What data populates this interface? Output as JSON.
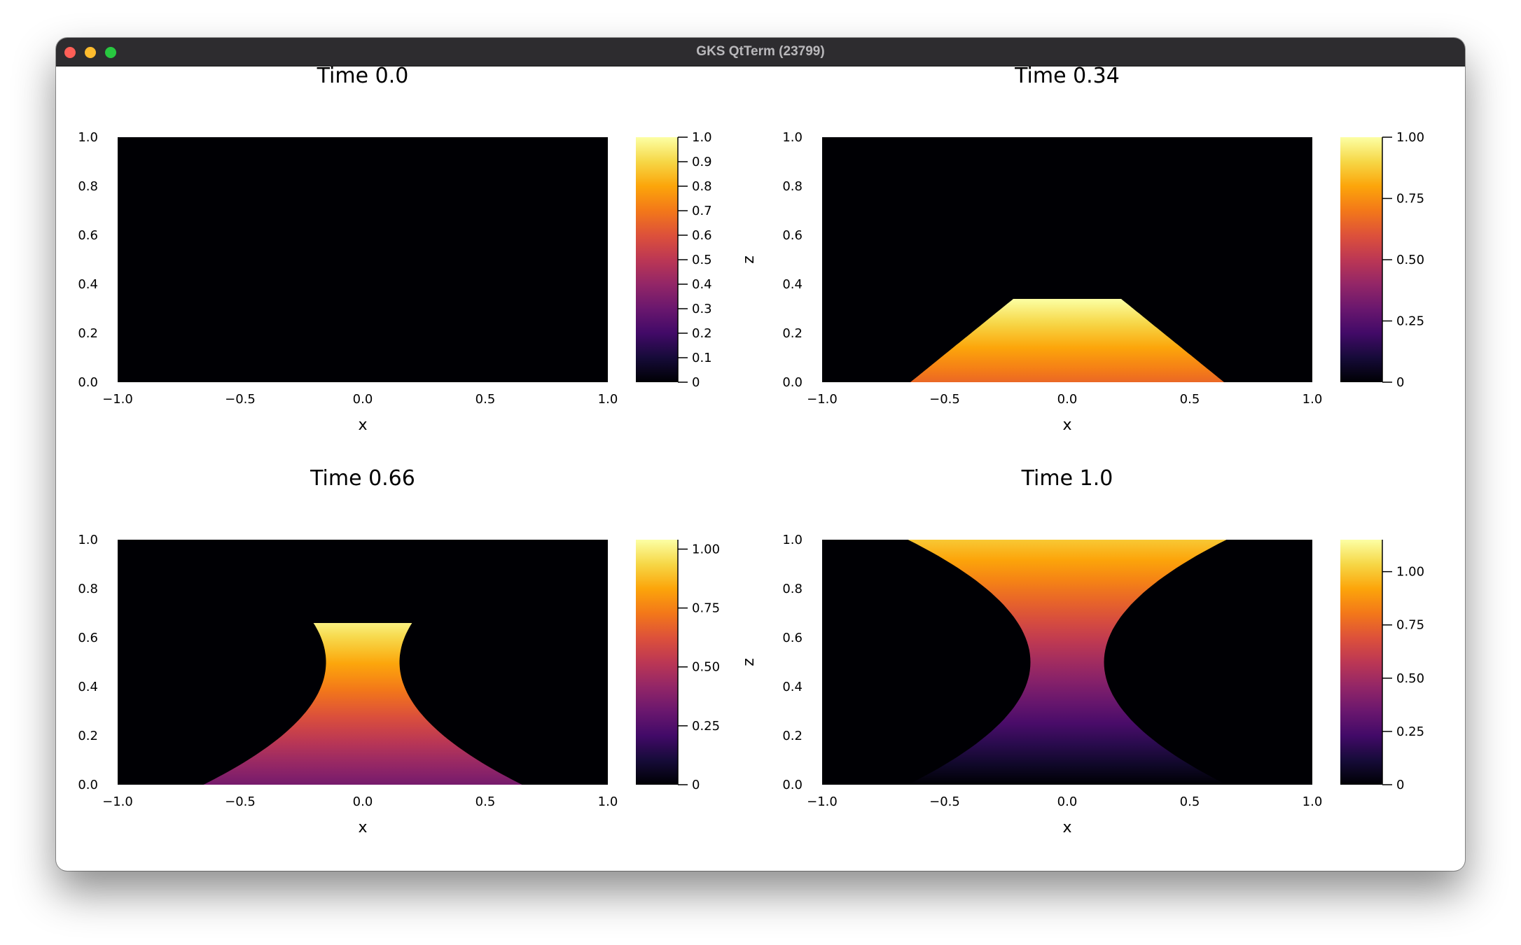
{
  "window": {
    "title": "GKS QtTerm (23799)",
    "traffic_lights": [
      "close",
      "minimize",
      "maximize"
    ],
    "colors": {
      "close": "#fe5f57",
      "minimize": "#febc2e",
      "maximize": "#28c840",
      "titlebar": "#2d2c2f"
    }
  },
  "chart_data": [
    {
      "type": "heatmap",
      "title": "Time 0.0",
      "xlabel": "x",
      "ylabel": "",
      "xlim": [
        -1.0,
        1.0
      ],
      "ylim": [
        0.0,
        1.0
      ],
      "xticks": [
        "−1.0",
        "−0.5",
        "0.0",
        "0.5",
        "1.0"
      ],
      "yticks": [
        "0.0",
        "0.2",
        "0.4",
        "0.6",
        "0.8",
        "1.0"
      ],
      "colormap": "inferno",
      "clim": [
        0,
        1.0
      ],
      "colorbar_ticks": [
        {
          "value": 0,
          "label": "0"
        },
        {
          "value": 0.1,
          "label": "0.1"
        },
        {
          "value": 0.2,
          "label": "0.2"
        },
        {
          "value": 0.3,
          "label": "0.3"
        },
        {
          "value": 0.4,
          "label": "0.4"
        },
        {
          "value": 0.5,
          "label": "0.5"
        },
        {
          "value": 0.6,
          "label": "0.6"
        },
        {
          "value": 0.7,
          "label": "0.7"
        },
        {
          "value": 0.8,
          "label": "0.8"
        },
        {
          "value": 0.9,
          "label": "0.9"
        },
        {
          "value": 1.0,
          "label": "1.0"
        }
      ],
      "field": {
        "t": 0.0,
        "shape": "empty"
      }
    },
    {
      "type": "heatmap",
      "title": "Time 0.34",
      "xlabel": "x",
      "ylabel": "z",
      "xlim": [
        -1.0,
        1.0
      ],
      "ylim": [
        0.0,
        1.0
      ],
      "xticks": [
        "−1.0",
        "−0.5",
        "0.0",
        "0.5",
        "1.0"
      ],
      "yticks": [
        "0.0",
        "0.2",
        "0.4",
        "0.6",
        "0.8",
        "1.0"
      ],
      "colormap": "inferno",
      "clim": [
        0,
        1.0
      ],
      "colorbar_ticks": [
        {
          "value": 0,
          "label": "0"
        },
        {
          "value": 0.25,
          "label": "0.25"
        },
        {
          "value": 0.5,
          "label": "0.50"
        },
        {
          "value": 0.75,
          "label": "0.75"
        },
        {
          "value": 1.0,
          "label": "1.00"
        }
      ],
      "field": {
        "t": 0.34,
        "shape": "trapezoid",
        "top_z": 0.34,
        "half_width_bottom": 0.64,
        "half_width_top": 0.22,
        "value_bottom": 0.66,
        "value_top": 1.0
      }
    },
    {
      "type": "heatmap",
      "title": "Time 0.66",
      "xlabel": "x",
      "ylabel": "",
      "xlim": [
        -1.0,
        1.0
      ],
      "ylim": [
        0.0,
        1.0
      ],
      "xticks": [
        "−1.0",
        "−0.5",
        "0.0",
        "0.5",
        "1.0"
      ],
      "yticks": [
        "0.0",
        "0.2",
        "0.4",
        "0.6",
        "0.8",
        "1.0"
      ],
      "colormap": "inferno",
      "clim": [
        0,
        1.04
      ],
      "colorbar_ticks": [
        {
          "value": 0,
          "label": "0"
        },
        {
          "value": 0.25,
          "label": "0.25"
        },
        {
          "value": 0.5,
          "label": "0.50"
        },
        {
          "value": 0.75,
          "label": "0.75"
        },
        {
          "value": 1.0,
          "label": "1.00"
        }
      ],
      "field": {
        "t": 0.66,
        "shape": "hourglass",
        "top_z": 0.66,
        "waist_z": 0.5,
        "half_width_bottom": 0.65,
        "half_width_waist": 0.15,
        "half_width_top": 0.21,
        "value_bottom": 0.34,
        "value_top": 1.0
      }
    },
    {
      "type": "heatmap",
      "title": "Time 1.0",
      "xlabel": "x",
      "ylabel": "z",
      "xlim": [
        -1.0,
        1.0
      ],
      "ylim": [
        0.0,
        1.0
      ],
      "xticks": [
        "−1.0",
        "−0.5",
        "0.0",
        "0.5",
        "1.0"
      ],
      "yticks": [
        "0.0",
        "0.2",
        "0.4",
        "0.6",
        "0.8",
        "1.0"
      ],
      "colormap": "inferno",
      "clim": [
        0,
        1.15
      ],
      "colorbar_ticks": [
        {
          "value": 0,
          "label": "0"
        },
        {
          "value": 0.25,
          "label": "0.25"
        },
        {
          "value": 0.5,
          "label": "0.50"
        },
        {
          "value": 0.75,
          "label": "0.75"
        },
        {
          "value": 1.0,
          "label": "1.00"
        }
      ],
      "field": {
        "t": 1.0,
        "shape": "hourglass",
        "top_z": 1.0,
        "waist_z": 0.5,
        "half_width_bottom": 0.65,
        "half_width_waist": 0.15,
        "half_width_top": 0.65,
        "value_bottom": 0.0,
        "value_top": 1.0
      }
    }
  ]
}
